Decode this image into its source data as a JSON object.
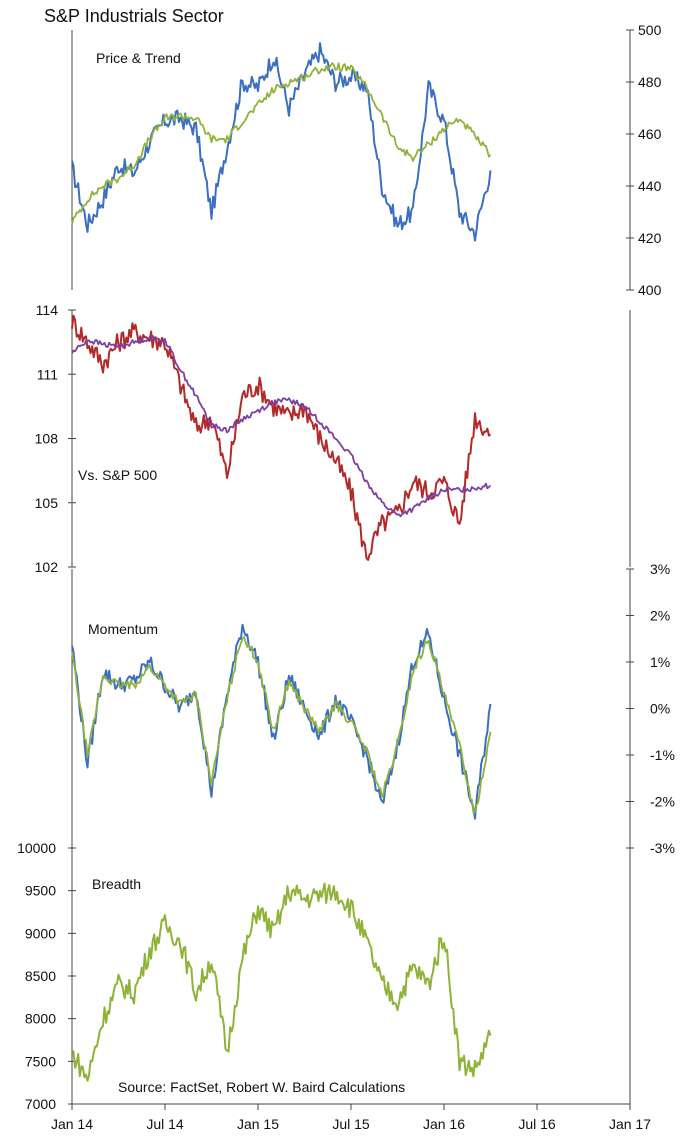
{
  "title": "S&P Industrials Sector",
  "source": "Source: FactSet, Robert W. Baird Calculations",
  "colors": {
    "price": "#3b6fc0",
    "trend": "#8fb339",
    "relative": "#b22a2a",
    "relative_avg": "#7e3fa3",
    "momentum": "#3b6fc0",
    "momentum_avg": "#8fb339",
    "breadth": "#8fb339"
  },
  "x_axis": {
    "ticks": [
      "Jan 14",
      "Jul 14",
      "Jan 15",
      "Jul 15",
      "Jan 16",
      "Jul 16",
      "Jan 17"
    ]
  },
  "chart_data": [
    {
      "type": "line",
      "name": "price-trend",
      "label": "Price & Trend",
      "axis": "right",
      "ylim": [
        400,
        500
      ],
      "yticks": [
        "400",
        "420",
        "440",
        "460",
        "480",
        "500"
      ],
      "x": [
        "Jan 14",
        "Feb 14",
        "Mar 14",
        "Apr 14",
        "May 14",
        "Jun 14",
        "Jul 14",
        "Aug 14",
        "Sep 14",
        "Oct 14",
        "Nov 14",
        "Dec 14",
        "Jan 15",
        "Feb 15",
        "Mar 15",
        "Apr 15",
        "May 15",
        "Jun 15",
        "Jul 15",
        "Aug 15",
        "Sep 15",
        "Oct 15",
        "Nov 15",
        "Dec 15",
        "Jan 16",
        "Feb 16",
        "Mar 16",
        "Apr 16"
      ],
      "series": [
        {
          "values": [
            447,
            425,
            435,
            448,
            445,
            457,
            465,
            466,
            462,
            430,
            455,
            480,
            478,
            490,
            470,
            483,
            492,
            480,
            482,
            478,
            440,
            425,
            430,
            478,
            465,
            430,
            422,
            446
          ]
        },
        {
          "values": [
            426,
            435,
            440,
            443,
            448,
            458,
            466,
            467,
            466,
            458,
            458,
            465,
            471,
            477,
            480,
            482,
            485,
            486,
            485,
            478,
            467,
            455,
            451,
            456,
            462,
            466,
            459,
            452
          ]
        }
      ]
    },
    {
      "type": "line",
      "name": "relative",
      "label": "Vs. S&P 500",
      "axis": "left",
      "ylim": [
        102,
        114
      ],
      "yticks": [
        "102",
        "105",
        "108",
        "111",
        "114"
      ],
      "x": [
        "Jan 14",
        "Feb 14",
        "Mar 14",
        "Apr 14",
        "May 14",
        "Jun 14",
        "Jul 14",
        "Aug 14",
        "Sep 14",
        "Oct 14",
        "Nov 14",
        "Dec 14",
        "Jan 15",
        "Feb 15",
        "Mar 15",
        "Apr 15",
        "May 15",
        "Jun 15",
        "Jul 15",
        "Aug 15",
        "Sep 15",
        "Oct 15",
        "Nov 15",
        "Dec 15",
        "Jan 16",
        "Feb 16",
        "Mar 16",
        "Apr 16"
      ],
      "series": [
        {
          "values": [
            113.5,
            112.5,
            111.5,
            112.5,
            113.0,
            112.7,
            112.5,
            110.5,
            108.5,
            109.0,
            106.3,
            110.0,
            110.5,
            109.5,
            109.0,
            109.5,
            108.0,
            107.0,
            105.5,
            102.5,
            104.0,
            104.5,
            106.0,
            105.5,
            106.0,
            104.0,
            109.0,
            108.2
          ]
        },
        {
          "values": [
            112.0,
            112.6,
            112.4,
            112.3,
            112.5,
            112.7,
            112.6,
            111.2,
            110.0,
            108.6,
            108.4,
            108.9,
            109.3,
            109.7,
            109.8,
            109.5,
            108.8,
            108.0,
            107.2,
            106.0,
            105.0,
            104.4,
            104.7,
            105.2,
            105.6,
            105.6,
            105.7,
            105.8
          ]
        }
      ]
    },
    {
      "type": "line",
      "name": "momentum",
      "label": "Momentum",
      "axis": "right",
      "ylim": [
        -3,
        3
      ],
      "yticks": [
        "-3%",
        "-2%",
        "-1%",
        "0%",
        "1%",
        "2%",
        "3%"
      ],
      "x": [
        "Jan 14",
        "Feb 14",
        "Mar 14",
        "Apr 14",
        "May 14",
        "Jun 14",
        "Jul 14",
        "Aug 14",
        "Sep 14",
        "Oct 14",
        "Nov 14",
        "Dec 14",
        "Jan 15",
        "Feb 15",
        "Mar 15",
        "Apr 15",
        "May 15",
        "Jun 15",
        "Jul 15",
        "Aug 15",
        "Sep 15",
        "Oct 15",
        "Nov 15",
        "Dec 15",
        "Jan 16",
        "Feb 16",
        "Mar 16",
        "Apr 16"
      ],
      "series": [
        {
          "values": [
            1.4,
            -1.2,
            0.8,
            0.5,
            0.6,
            1.0,
            0.5,
            0.0,
            0.4,
            -1.8,
            0.3,
            1.8,
            1.0,
            -0.7,
            0.7,
            0.0,
            -0.6,
            0.2,
            -0.3,
            -1.0,
            -2.1,
            -0.8,
            1.0,
            1.6,
            0.2,
            -1.0,
            -2.3,
            0.1
          ]
        },
        {
          "values": [
            1.2,
            -1.0,
            0.7,
            0.5,
            0.5,
            0.9,
            0.5,
            0.1,
            0.3,
            -1.6,
            0.2,
            1.6,
            1.0,
            -0.5,
            0.6,
            0.0,
            -0.5,
            0.1,
            -0.3,
            -0.9,
            -1.9,
            -0.8,
            0.8,
            1.5,
            0.3,
            -0.8,
            -2.3,
            -0.5
          ]
        }
      ]
    },
    {
      "type": "line",
      "name": "breadth",
      "label": "Breadth",
      "axis": "left",
      "ylim": [
        7000,
        10000
      ],
      "yticks": [
        "7000",
        "7500",
        "8000",
        "8500",
        "9000",
        "9500",
        "10000"
      ],
      "x": [
        "Jan 14",
        "Feb 14",
        "Mar 14",
        "Apr 14",
        "May 14",
        "Jun 14",
        "Jul 14",
        "Aug 14",
        "Sep 14",
        "Oct 14",
        "Nov 14",
        "Dec 14",
        "Jan 15",
        "Feb 15",
        "Mar 15",
        "Apr 15",
        "May 15",
        "Jun 15",
        "Jul 15",
        "Aug 15",
        "Sep 15",
        "Oct 15",
        "Nov 15",
        "Dec 15",
        "Jan 16",
        "Feb 16",
        "Mar 16",
        "Apr 16"
      ],
      "series": [
        {
          "values": [
            7600,
            7300,
            8000,
            8400,
            8300,
            8800,
            9100,
            8900,
            8300,
            8700,
            7600,
            8700,
            9300,
            9000,
            9500,
            9400,
            9450,
            9500,
            9300,
            8900,
            8400,
            8200,
            8600,
            8400,
            9000,
            7500,
            7400,
            7800
          ]
        }
      ]
    }
  ]
}
